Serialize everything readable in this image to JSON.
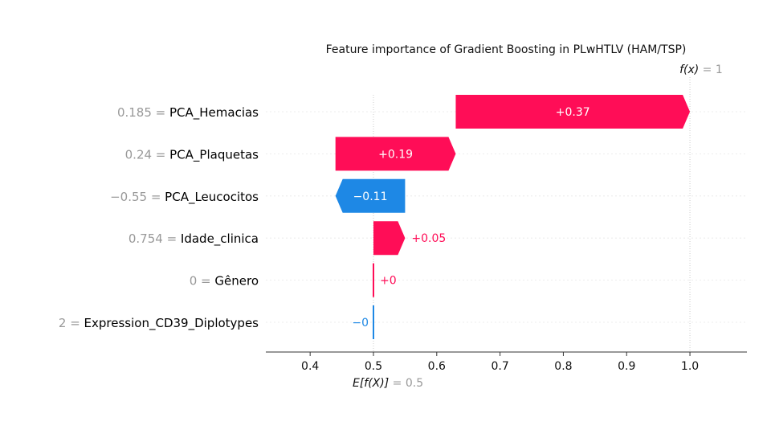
{
  "chart_data": {
    "type": "waterfall",
    "title": "Feature importance of Gradient Boosting in PLwHTLV (HAM/TSP)",
    "base_value": 0.5,
    "output_value": 1,
    "base_label": "E[f(X)]",
    "base_value_label": "= 0.5",
    "output_label": "f(x)",
    "output_value_label": "= 1",
    "xlim": [
      0.33,
      1.09
    ],
    "x_ticks": [
      {
        "value": 0.4,
        "label": "0.4"
      },
      {
        "value": 0.5,
        "label": "0.5"
      },
      {
        "value": 0.6,
        "label": "0.6"
      },
      {
        "value": 0.7,
        "label": "0.7"
      },
      {
        "value": 0.8,
        "label": "0.8"
      },
      {
        "value": 0.9,
        "label": "0.9"
      },
      {
        "value": 1.0,
        "label": "1.0"
      }
    ],
    "features": [
      {
        "value_label": "0.185 =",
        "name": "PCA_Hemacias",
        "contribution": 0.37,
        "contribution_label": "+0.37",
        "start": 0.63
      },
      {
        "value_label": "0.24 =",
        "name": "PCA_Plaquetas",
        "contribution": 0.19,
        "contribution_label": "+0.19",
        "start": 0.44
      },
      {
        "value_label": "−0.55 =",
        "name": "PCA_Leucocitos",
        "contribution": -0.11,
        "contribution_label": "−0.11",
        "start": 0.55
      },
      {
        "value_label": "0.754 =",
        "name": "Idade_clinica",
        "contribution": 0.05,
        "contribution_label": "+0.05",
        "start": 0.5
      },
      {
        "value_label": "0 =",
        "name": "Gênero",
        "contribution": 0.0,
        "contribution_label": "+0",
        "start": 0.5
      },
      {
        "value_label": "2 =",
        "name": "Expression_CD39_Diplotypes",
        "contribution": -0.0,
        "contribution_label": "−0",
        "start": 0.5
      }
    ],
    "colors": {
      "positive": "#ff0d57",
      "negative": "#1e88e5"
    },
    "grid": false
  }
}
